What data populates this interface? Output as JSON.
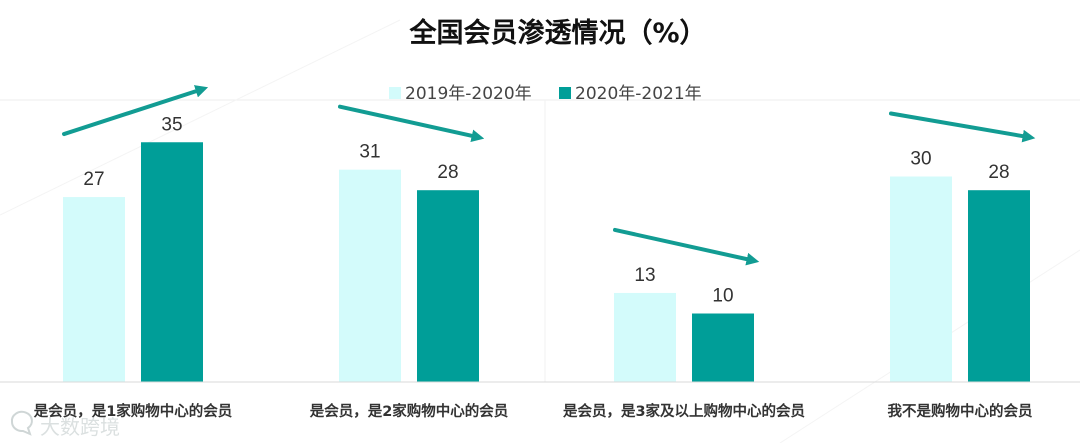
{
  "chart_data": {
    "type": "bar",
    "title": "全国会员渗透情况（%）",
    "categories": [
      "是会员，是1家购物中心的会员",
      "是会员，是2家购物中心的会员",
      "是会员，是3家及以上购物中心的会员",
      "我不是购物中心的会员"
    ],
    "series": [
      {
        "name": "2019年-2020年",
        "color": "#d3fbfb",
        "values": [
          27,
          31,
          13,
          30
        ]
      },
      {
        "name": "2020年-2021年",
        "color": "#009e98",
        "values": [
          35,
          28,
          10,
          28
        ]
      }
    ],
    "trend_arrow_color": "#129c93",
    "ylim": [
      0,
      40
    ],
    "grid": false,
    "legend_position": "top-center",
    "xlabel": "",
    "ylabel": ""
  },
  "watermark": "大数跨境",
  "watermark_icon": "chat-bubble-icon"
}
